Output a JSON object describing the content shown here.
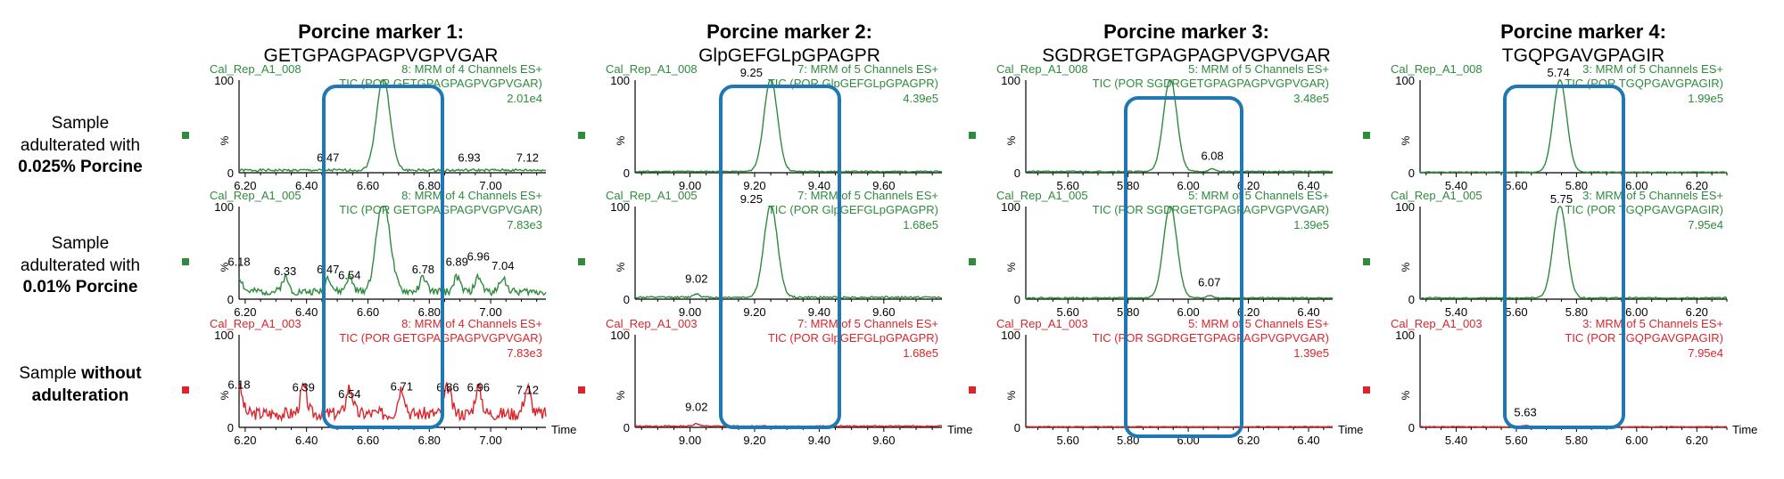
{
  "columns": [
    {
      "title": "Porcine marker 1:",
      "peptide": "GETGPAGPAGPVGPVGAR"
    },
    {
      "title": "Porcine marker 2:",
      "peptide": "GlpGEFGLpGPAGPR"
    },
    {
      "title": "Porcine marker 3:",
      "peptide": "SGDRGETGPAGPAGPVGPVGAR"
    },
    {
      "title": "Porcine marker 4:",
      "peptide": "TGQPGAVGPAGIR"
    }
  ],
  "rows": [
    {
      "line1": "Sample",
      "line2": "adulterated with",
      "bold": "0.025% Porcine"
    },
    {
      "line1": "Sample",
      "line2": "adulterated with",
      "bold": "0.01% Porcine"
    },
    {
      "plain": "Sample ",
      "bold_a": "without",
      "bold_b": "adulteration"
    }
  ],
  "colors": {
    "green": "#2e8b3d",
    "red": "#d9262c",
    "highlight": "#1f77b4"
  },
  "chart_data": [
    {
      "type": "line",
      "marker": 1,
      "xticks": [
        "6.20",
        "6.40",
        "6.60",
        "6.80",
        "7.00"
      ],
      "xlim": [
        6.18,
        7.18
      ],
      "ylim": [
        0,
        100
      ],
      "peak_rt": 6.65,
      "traces": [
        {
          "file": "Cal_Rep_A1_008",
          "header": "8: MRM of 4 Channels ES+",
          "tic": "TIC (POR GETGPAGPAGPVGPVGAR)",
          "intensity": "2.01e4",
          "color": "green",
          "y_label": "100",
          "y_axis": "%",
          "y_zero": "0",
          "has_time": false,
          "noise": 4,
          "wobble": [],
          "labels": [
            {
              "x": 6.47,
              "y": 8,
              "t": "6.47"
            },
            {
              "x": 6.93,
              "y": 8,
              "t": "6.93"
            },
            {
              "x": 7.12,
              "y": 8,
              "t": "7.12"
            }
          ]
        },
        {
          "file": "Cal_Rep_A1_005",
          "header": "8: MRM of 4 Channels ES+",
          "tic": "TIC (POR GETGPAGPAGPVGPVGAR)",
          "intensity": "7.83e3",
          "color": "green",
          "y_label": "100",
          "y_axis": "%",
          "y_zero": "0",
          "has_time": false,
          "noise": 12,
          "wobble": [
            6.18,
            6.33,
            6.47,
            6.54,
            6.78,
            6.89,
            6.96,
            7.04
          ],
          "labels": [
            {
              "x": 6.18,
              "y": 32,
              "t": "6.18"
            },
            {
              "x": 6.33,
              "y": 22,
              "t": "6.33"
            },
            {
              "x": 6.47,
              "y": 24,
              "t": "6.47"
            },
            {
              "x": 6.54,
              "y": 18,
              "t": "6.54"
            },
            {
              "x": 6.78,
              "y": 24,
              "t": "6.78"
            },
            {
              "x": 6.89,
              "y": 32,
              "t": "6.89"
            },
            {
              "x": 6.96,
              "y": 38,
              "t": "6.96"
            },
            {
              "x": 7.04,
              "y": 28,
              "t": "7.04"
            }
          ]
        },
        {
          "file": "Cal_Rep_A1_003",
          "header": "8: MRM of 4 Channels ES+",
          "tic": "TIC (POR GETGPAGPAGPVGPVGAR)",
          "intensity": "7.83e3",
          "color": "red",
          "y_label": "100",
          "y_axis": "%",
          "y_zero": "0",
          "has_time": true,
          "time_label": "Time",
          "noise": 22,
          "wobble": [
            6.18,
            6.39,
            6.54,
            6.71,
            6.86,
            6.96,
            7.12
          ],
          "labels": [
            {
              "x": 6.18,
              "y": 38,
              "t": "6.18"
            },
            {
              "x": 6.39,
              "y": 35,
              "t": "6.39"
            },
            {
              "x": 6.54,
              "y": 28,
              "t": "6.54"
            },
            {
              "x": 6.71,
              "y": 36,
              "t": "6.71"
            },
            {
              "x": 6.86,
              "y": 35,
              "t": "6.86"
            },
            {
              "x": 6.96,
              "y": 35,
              "t": "6.96"
            },
            {
              "x": 7.12,
              "y": 32,
              "t": "7.12"
            }
          ]
        }
      ]
    },
    {
      "type": "line",
      "marker": 2,
      "xticks": [
        "9.00",
        "9.20",
        "9.40",
        "9.60"
      ],
      "xlim": [
        8.83,
        9.78
      ],
      "ylim": [
        0,
        100
      ],
      "peak_rt": 9.25,
      "traces": [
        {
          "file": "Cal_Rep_A1_008",
          "header": "7: MRM of 5 Channels ES+",
          "tic": "TIC (POR GlpGEFGLpGPAGPR)",
          "intensity": "4.39e5",
          "color": "green",
          "y_label": "100",
          "y_axis": "%",
          "y_zero": "0",
          "has_time": false,
          "noise": 2,
          "wobble": [],
          "labels": [
            {
              "x": 9.19,
              "y": 100,
              "t": "9.25"
            }
          ]
        },
        {
          "file": "Cal_Rep_A1_005",
          "header": "7: MRM of 5 Channels ES+",
          "tic": "TIC (POR GlpGEFGLpGPAGPR)",
          "intensity": "1.68e5",
          "color": "green",
          "y_label": "100",
          "y_axis": "%",
          "y_zero": "0",
          "has_time": false,
          "noise": 3,
          "wobble": [
            9.02
          ],
          "labels": [
            {
              "x": 9.19,
              "y": 100,
              "t": "9.25"
            },
            {
              "x": 9.02,
              "y": 14,
              "t": "9.02"
            }
          ]
        },
        {
          "file": "Cal_Rep_A1_003",
          "header": "7: MRM of 5 Channels ES+",
          "tic": "TIC (POR GlpGEFGLpGPAGPR)",
          "intensity": "1.68e5",
          "color": "red",
          "y_label": "100",
          "y_axis": "%",
          "y_zero": "0",
          "has_time": true,
          "time_label": "Time",
          "noise": 2,
          "wobble": [
            9.02
          ],
          "labels": [
            {
              "x": 9.02,
              "y": 14,
              "t": "9.02"
            }
          ]
        }
      ]
    },
    {
      "type": "line",
      "marker": 3,
      "xticks": [
        "5.60",
        "5.80",
        "6.00",
        "6.20",
        "6.40"
      ],
      "xlim": [
        5.46,
        6.48
      ],
      "ylim": [
        0,
        100
      ],
      "peak_rt": 5.94,
      "traces": [
        {
          "file": "Cal_Rep_A1_008",
          "header": "5: MRM of 5 Channels ES+",
          "tic": "TIC (POR SGDRGETGPAGPAGPVGPVGAR)",
          "intensity": "3.48e5",
          "color": "green",
          "y_label": "100",
          "y_axis": "%",
          "y_zero": "0",
          "has_time": false,
          "noise": 2,
          "wobble": [
            6.08
          ],
          "labels": [
            {
              "x": 6.08,
              "y": 10,
              "t": "6.08"
            }
          ]
        },
        {
          "file": "Cal_Rep_A1_005",
          "header": "5: MRM of 5 Channels ES+",
          "tic": "TIC (POR SGDRGETGPAGPAGPVGPVGAR)",
          "intensity": "1.39e5",
          "color": "green",
          "y_label": "100",
          "y_axis": "%",
          "y_zero": "0",
          "has_time": false,
          "noise": 2,
          "wobble": [
            6.07
          ],
          "labels": [
            {
              "x": 6.07,
              "y": 10,
              "t": "6.07"
            }
          ]
        },
        {
          "file": "Cal_Rep_A1_003",
          "header": "5: MRM of 5 Channels ES+",
          "tic": "TIC (POR SGDRGETGPAGPAGPVGPVGAR)",
          "intensity": "1.39e5",
          "color": "red",
          "y_label": "100",
          "y_axis": "%",
          "y_zero": "0",
          "has_time": true,
          "time_label": "Time",
          "noise": 1,
          "wobble": [],
          "labels": []
        }
      ]
    },
    {
      "type": "line",
      "marker": 4,
      "xticks": [
        "5.40",
        "5.60",
        "5.80",
        "6.00",
        "6.20"
      ],
      "xlim": [
        5.28,
        6.3
      ],
      "ylim": [
        0,
        100
      ],
      "peak_rt": 5.745,
      "traces": [
        {
          "file": "Cal_Rep_A1_008",
          "header": "3: MRM of 5 Channels ES+",
          "tic": "TIC (POR TGQPGAVGPAGIR)",
          "intensity": "1.99e5",
          "color": "green",
          "y_label": "100",
          "y_axis": "%",
          "y_zero": "0",
          "has_time": false,
          "noise": 1,
          "wobble": [],
          "labels": [
            {
              "x": 5.74,
              "y": 100,
              "t": "5.74"
            }
          ]
        },
        {
          "file": "Cal_Rep_A1_005",
          "header": "3: MRM of 5 Channels ES+",
          "tic": "TIC (POR TGQPGAVGPAGIR)",
          "intensity": "7.95e4",
          "color": "green",
          "y_label": "100",
          "y_axis": "%",
          "y_zero": "0",
          "has_time": false,
          "noise": 2,
          "wobble": [],
          "labels": [
            {
              "x": 5.75,
              "y": 100,
              "t": "5.75"
            }
          ]
        },
        {
          "file": "Cal_Rep_A1_003",
          "header": "3: MRM of 5 Channels ES+",
          "tic": "TIC (POR TGQPGAVGPAGIR)",
          "intensity": "7.95e4",
          "color": "red",
          "y_label": "100",
          "y_axis": "%",
          "y_zero": "0",
          "has_time": true,
          "time_label": "Time",
          "noise": 1,
          "wobble": [
            5.63
          ],
          "labels": [
            {
              "x": 5.63,
              "y": 8,
              "t": "5.63"
            }
          ]
        }
      ]
    }
  ]
}
